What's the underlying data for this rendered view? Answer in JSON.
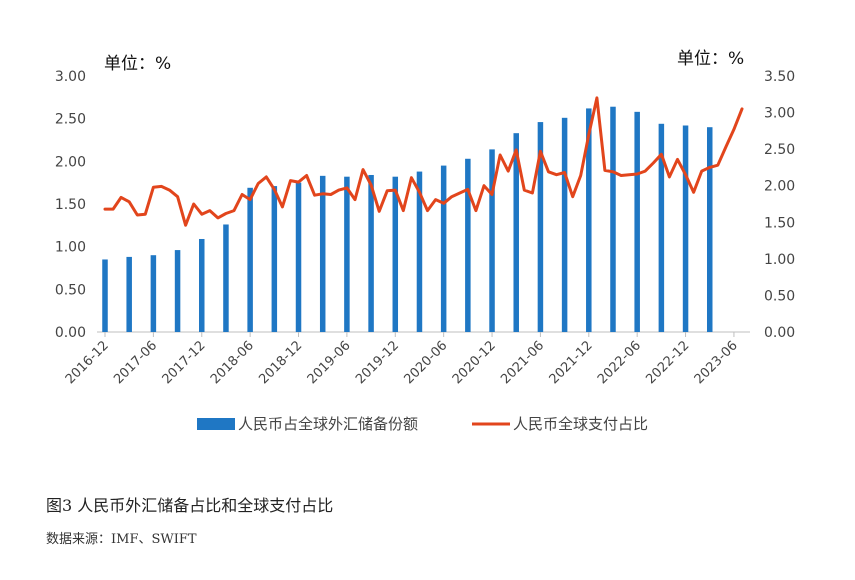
{
  "caption": "图3 人民币外汇储备占比和全球支付占比",
  "source": "数据来源：IMF、SWIFT",
  "chart_data": {
    "type": "bar+line",
    "left_unit": "单位：%",
    "right_unit": "单位：%",
    "left_axis": {
      "min": 0,
      "max": 3.0,
      "step": 0.5,
      "ticks": [
        "0.00",
        "0.50",
        "1.00",
        "1.50",
        "2.00",
        "2.50",
        "3.00"
      ]
    },
    "right_axis": {
      "min": 0,
      "max": 3.5,
      "step": 0.5,
      "ticks": [
        "0.00",
        "0.50",
        "1.00",
        "1.50",
        "2.00",
        "2.50",
        "3.00",
        "3.50"
      ]
    },
    "x_start": "2016-12",
    "x_end": "2023-07",
    "x_tick_labels": [
      "2016-12",
      "2017-06",
      "2017-12",
      "2018-06",
      "2018-12",
      "2019-06",
      "2019-12",
      "2020-06",
      "2020-12",
      "2021-06",
      "2021-12",
      "2022-06",
      "2022-12",
      "2023-06"
    ],
    "series": [
      {
        "name": "人民币占全球外汇储备份额",
        "kind": "bar",
        "axis": "left",
        "color": "#1f77c4",
        "x": [
          "2016-12",
          "2017-03",
          "2017-06",
          "2017-09",
          "2017-12",
          "2018-03",
          "2018-06",
          "2018-09",
          "2018-12",
          "2019-03",
          "2019-06",
          "2019-09",
          "2019-12",
          "2020-03",
          "2020-06",
          "2020-09",
          "2020-12",
          "2021-03",
          "2021-06",
          "2021-09",
          "2021-12",
          "2022-03",
          "2022-06",
          "2022-09",
          "2022-12",
          "2023-03"
        ],
        "values": [
          0.85,
          0.88,
          0.9,
          0.96,
          1.09,
          1.26,
          1.69,
          1.71,
          1.75,
          1.83,
          1.82,
          1.84,
          1.82,
          1.88,
          1.95,
          2.03,
          2.14,
          2.33,
          2.46,
          2.51,
          2.62,
          2.64,
          2.58,
          2.44,
          2.42,
          2.4
        ]
      },
      {
        "name": "人民币全球支付占比",
        "kind": "line",
        "axis": "right",
        "color": "#e2451c",
        "x": [
          "2016-12",
          "2017-01",
          "2017-02",
          "2017-03",
          "2017-04",
          "2017-05",
          "2017-06",
          "2017-07",
          "2017-08",
          "2017-09",
          "2017-10",
          "2017-11",
          "2017-12",
          "2018-01",
          "2018-02",
          "2018-03",
          "2018-04",
          "2018-05",
          "2018-06",
          "2018-07",
          "2018-08",
          "2018-09",
          "2018-10",
          "2018-11",
          "2018-12",
          "2019-01",
          "2019-02",
          "2019-03",
          "2019-04",
          "2019-05",
          "2019-06",
          "2019-07",
          "2019-08",
          "2019-09",
          "2019-10",
          "2019-11",
          "2019-12",
          "2020-01",
          "2020-02",
          "2020-03",
          "2020-04",
          "2020-05",
          "2020-06",
          "2020-07",
          "2020-08",
          "2020-09",
          "2020-10",
          "2020-11",
          "2020-12",
          "2021-01",
          "2021-02",
          "2021-03",
          "2021-04",
          "2021-05",
          "2021-06",
          "2021-07",
          "2021-08",
          "2021-09",
          "2021-10",
          "2021-11",
          "2021-12",
          "2022-01",
          "2022-02",
          "2022-03",
          "2022-04",
          "2022-05",
          "2022-06",
          "2022-07",
          "2022-08",
          "2022-09",
          "2022-10",
          "2022-11",
          "2022-12",
          "2023-01",
          "2023-02",
          "2023-03",
          "2023-04",
          "2023-05",
          "2023-06",
          "2023-07"
        ],
        "values": [
          1.68,
          1.68,
          1.84,
          1.78,
          1.6,
          1.61,
          1.98,
          1.99,
          1.94,
          1.85,
          1.46,
          1.75,
          1.61,
          1.66,
          1.56,
          1.62,
          1.66,
          1.88,
          1.81,
          2.03,
          2.12,
          1.95,
          1.71,
          2.07,
          2.05,
          2.14,
          1.87,
          1.89,
          1.88,
          1.94,
          1.97,
          1.81,
          2.22,
          2.01,
          1.65,
          1.93,
          1.94,
          1.66,
          2.11,
          1.91,
          1.66,
          1.81,
          1.76,
          1.85,
          1.9,
          1.95,
          1.66,
          2.0,
          1.88,
          2.42,
          2.2,
          2.49,
          1.94,
          1.9,
          2.47,
          2.19,
          2.15,
          2.18,
          1.85,
          2.14,
          2.7,
          3.2,
          2.21,
          2.19,
          2.14,
          2.15,
          2.16,
          2.2,
          2.31,
          2.43,
          2.12,
          2.36,
          2.15,
          1.91,
          2.2,
          2.25,
          2.28,
          2.53,
          2.77,
          3.05
        ]
      }
    ],
    "legend_position": "bottom",
    "grid": false
  }
}
